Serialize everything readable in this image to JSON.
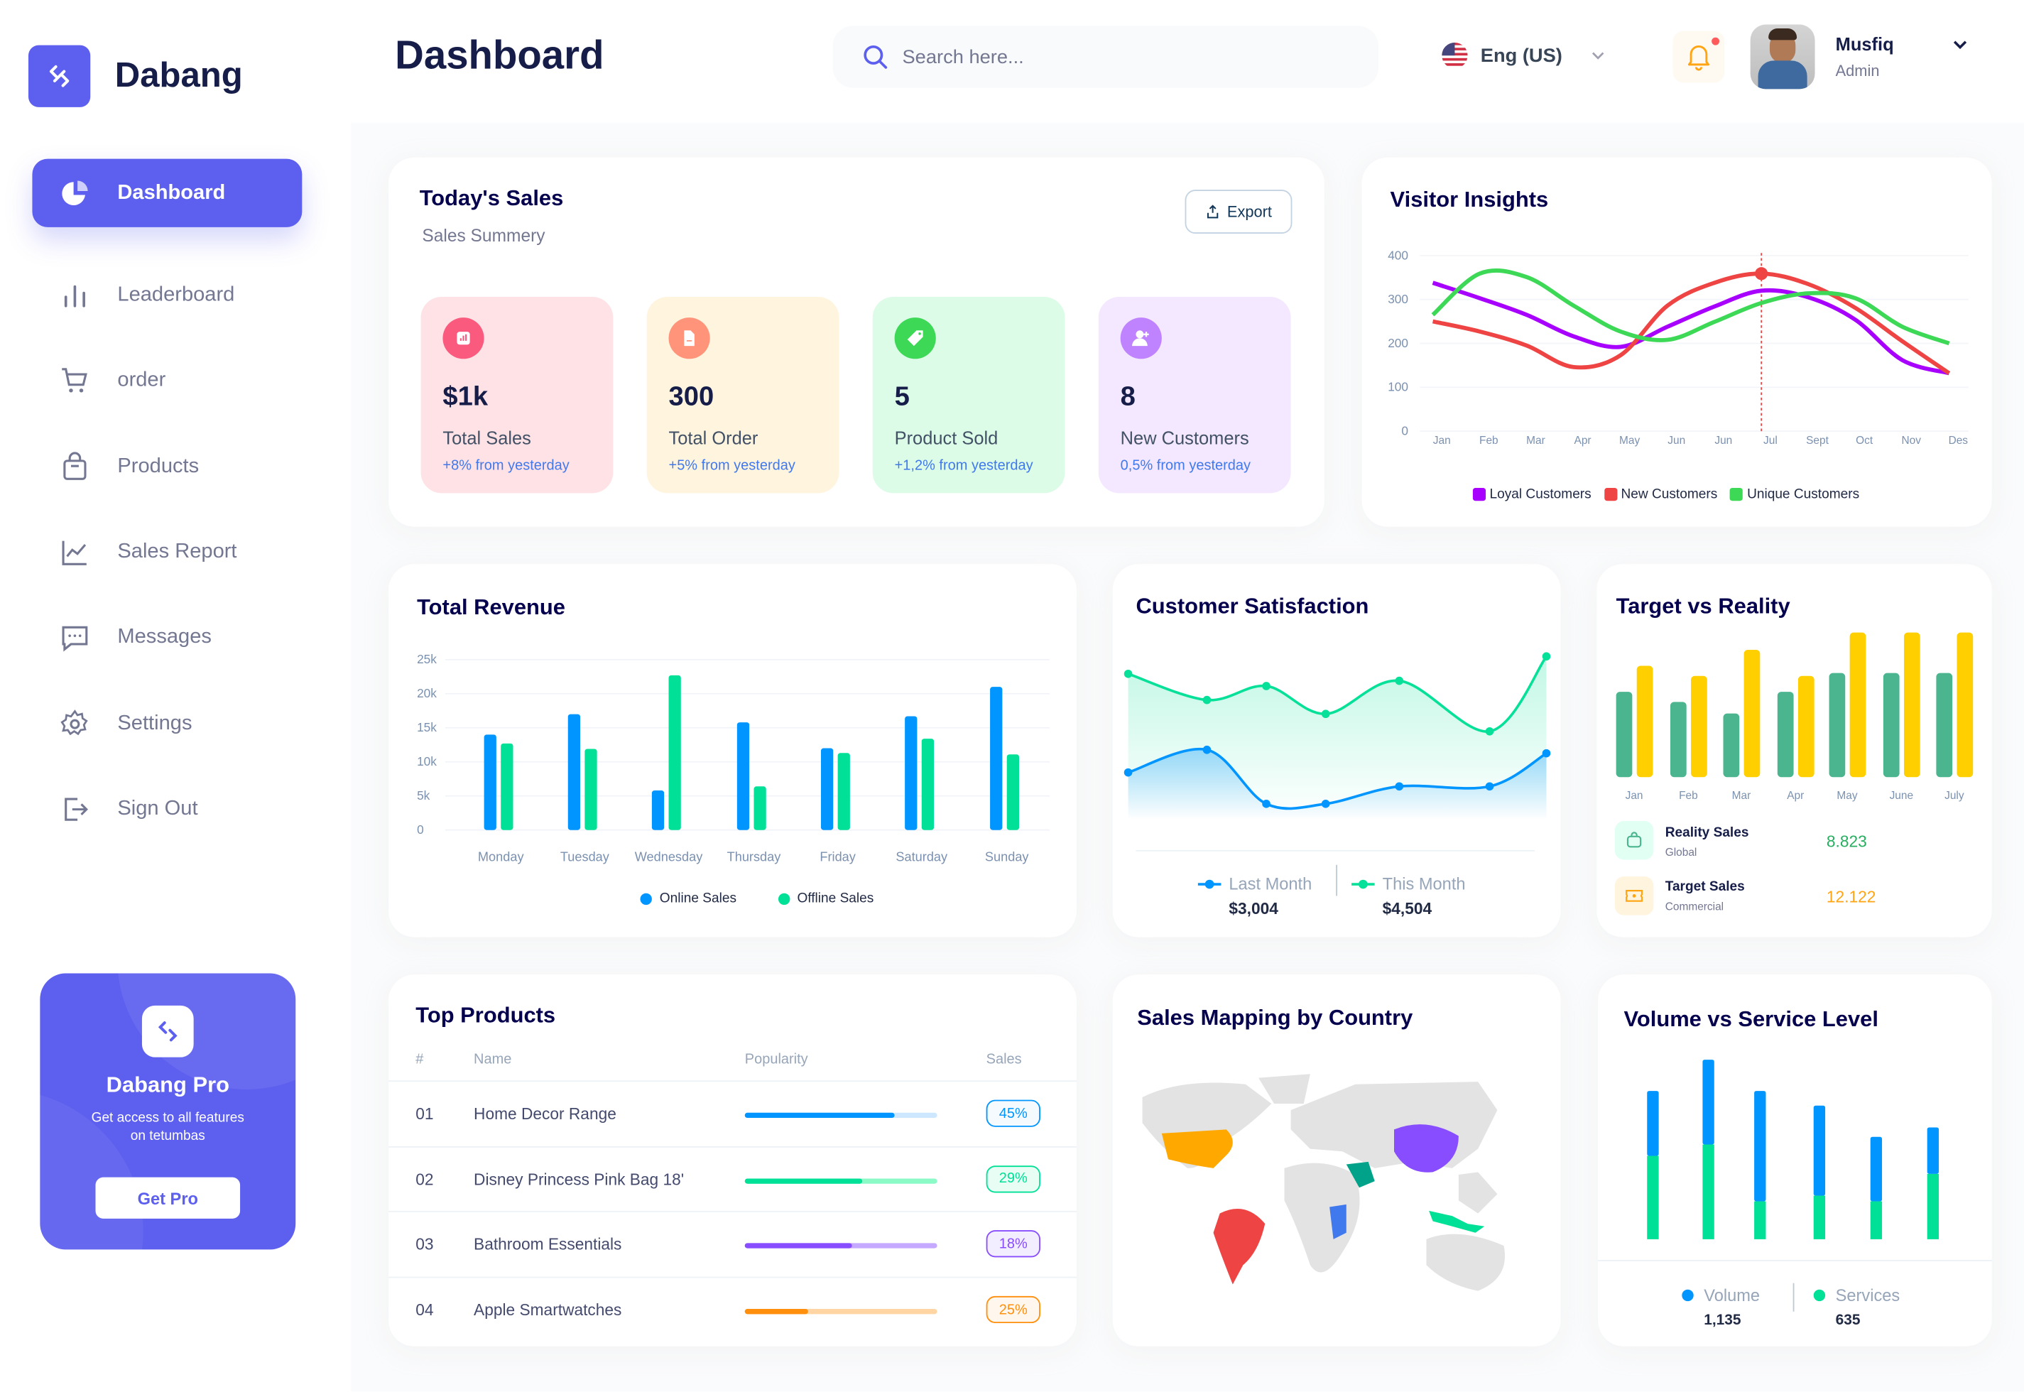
{
  "brand": {
    "name": "Dabang"
  },
  "sidebar": {
    "items": [
      {
        "label": "Dashboard",
        "icon": "pie-chart-icon",
        "active": true
      },
      {
        "label": "Leaderboard",
        "icon": "bar-chart-icon"
      },
      {
        "label": "order",
        "icon": "cart-icon"
      },
      {
        "label": "Products",
        "icon": "shopping-bag-icon"
      },
      {
        "label": "Sales Report",
        "icon": "line-chart-icon"
      },
      {
        "label": "Messages",
        "icon": "message-icon"
      },
      {
        "label": "Settings",
        "icon": "gear-icon"
      },
      {
        "label": "Sign Out",
        "icon": "sign-out-icon"
      }
    ]
  },
  "pro": {
    "title": "Dabang Pro",
    "description": "Get access to all features on tetumbas",
    "button": "Get Pro"
  },
  "header": {
    "title": "Dashboard",
    "search_placeholder": "Search here...",
    "language": "Eng (US)",
    "user_name": "Musfiq",
    "user_role": "Admin",
    "notification": true
  },
  "todays_sales": {
    "title": "Today's Sales",
    "subtitle": "Sales Summery",
    "export": "Export",
    "stats": [
      {
        "value": "$1k",
        "label": "Total Sales",
        "change": "+8% from yesterday",
        "bg": "#FFE2E5",
        "icon_bg": "#FA5A7D",
        "icon": "chart-icon"
      },
      {
        "value": "300",
        "label": "Total Order",
        "change": "+5% from yesterday",
        "bg": "#FFF4DE",
        "icon_bg": "#FF947A",
        "icon": "document-icon"
      },
      {
        "value": "5",
        "label": "Product Sold",
        "change": "+1,2% from yesterday",
        "bg": "#DCFCE7",
        "icon_bg": "#3CD856",
        "icon": "tag-icon"
      },
      {
        "value": "8",
        "label": "New Customers",
        "change": "0,5% from yesterday",
        "bg": "#F3E8FF",
        "icon_bg": "#BF83FF",
        "icon": "user-plus-icon"
      }
    ]
  },
  "chart_data": [
    {
      "id": "visitor",
      "title": "Visitor Insights",
      "type": "line",
      "x": [
        "Jan",
        "Feb",
        "Mar",
        "Apr",
        "May",
        "Jun",
        "Jun",
        "Jul",
        "Sept",
        "Oct",
        "Nov",
        "Des"
      ],
      "ylim": [
        0,
        400
      ],
      "yticks": [
        0,
        100,
        200,
        300,
        400
      ],
      "legend": "bottom",
      "highlight": {
        "series": "New Customers",
        "x": "Jul"
      },
      "series": [
        {
          "name": "Loyal Customers",
          "color": "#A700FF",
          "values": [
            338,
            303,
            265,
            216,
            192,
            238,
            284,
            320,
            305,
            254,
            162,
            132
          ]
        },
        {
          "name": "New Customers",
          "color": "#EF4444",
          "values": [
            250,
            227,
            195,
            146,
            173,
            286,
            338,
            359,
            335,
            281,
            205,
            132
          ]
        },
        {
          "name": "Unique Customers",
          "color": "#3CD856",
          "values": [
            265,
            359,
            351,
            286,
            227,
            208,
            249,
            292,
            314,
            303,
            238,
            200
          ]
        }
      ]
    },
    {
      "id": "revenue",
      "title": "Total Revenue",
      "type": "bar",
      "categories": [
        "Monday",
        "Tuesday",
        "Wednesday",
        "Thursday",
        "Friday",
        "Saturday",
        "Sunday"
      ],
      "ylim": [
        0,
        25000
      ],
      "yticks": [
        "0",
        "5k",
        "10k",
        "15k",
        "20k",
        "25k"
      ],
      "legend": "bottom",
      "grid": true,
      "series": [
        {
          "name": "Online Sales",
          "color": "#0095FF",
          "values": [
            14000,
            17000,
            5800,
            15800,
            12000,
            16700,
            21000
          ]
        },
        {
          "name": "Offline Sales",
          "color": "#00E096",
          "values": [
            12700,
            11900,
            22700,
            6400,
            11300,
            13400,
            11100
          ]
        }
      ]
    },
    {
      "id": "satisfaction",
      "title": "Customer Satisfaction",
      "type": "area",
      "points": 7,
      "series": [
        {
          "name": "Last Month",
          "color": "#0095FF",
          "total": "$3,004",
          "values": [
            36,
            49,
            18,
            18,
            28,
            28,
            47
          ]
        },
        {
          "name": "This Month",
          "color": "#07E098",
          "total": "$4,504",
          "values": [
            80,
            65,
            73,
            57,
            76,
            47,
            90
          ]
        }
      ]
    },
    {
      "id": "target",
      "title": "Target vs Reality",
      "type": "bar",
      "categories": [
        "Jan",
        "Feb",
        "Mar",
        "Apr",
        "May",
        "June",
        "July"
      ],
      "series": [
        {
          "name": "Reality Sales",
          "sub": "Global",
          "total": "8.823",
          "color": "#4AB58E",
          "values": [
            5.9,
            5.2,
            4.4,
            5.9,
            7.2,
            7.2,
            7.2
          ]
        },
        {
          "name": "Target Sales",
          "sub": "Commercial",
          "total": "12.122",
          "color": "#FFCF00",
          "values": [
            7.7,
            7.0,
            8.8,
            7.0,
            10,
            10,
            10
          ]
        }
      ]
    },
    {
      "id": "volume",
      "title": "Volume vs Service Level",
      "type": "stacked-bar",
      "series": [
        {
          "name": "Volume",
          "color": "#0095FF",
          "total": "1,135",
          "values": [
            137,
            179,
            233,
            190,
            136,
            98
          ]
        },
        {
          "name": "Services",
          "color": "#00E096",
          "total": "635",
          "values": [
            176,
            200,
            80,
            92,
            80,
            138
          ]
        }
      ]
    }
  ],
  "top_products": {
    "title": "Top Products",
    "columns": [
      "#",
      "Name",
      "Popularity",
      "Sales"
    ],
    "rows": [
      {
        "num": "01",
        "name": "Home Decor Range",
        "popularity": 78,
        "sales": "45%",
        "color": "#0095FF",
        "light": "#CDE7FF"
      },
      {
        "num": "02",
        "name": "Disney Princess Pink Bag 18'",
        "popularity": 61,
        "sales": "29%",
        "color": "#00E096",
        "light": "#8CFAC7"
      },
      {
        "num": "03",
        "name": "Bathroom Essentials",
        "popularity": 56,
        "sales": "18%",
        "color": "#884DFF",
        "light": "#C5A8FF"
      },
      {
        "num": "04",
        "name": "Apple Smartwatches",
        "popularity": 33,
        "sales": "25%",
        "color": "#FF8F0D",
        "light": "#FFD5A4"
      }
    ]
  },
  "map": {
    "title": "Sales Mapping by Country",
    "highlighted": [
      {
        "region": "USA",
        "color": "#FFA800"
      },
      {
        "region": "Brazil",
        "color": "#EF4444"
      },
      {
        "region": "China",
        "color": "#884DFF"
      },
      {
        "region": "Saudi Arabia",
        "color": "#00A389"
      },
      {
        "region": "Congo",
        "color": "#4079ED"
      },
      {
        "region": "Indonesia",
        "color": "#00E096"
      }
    ]
  }
}
